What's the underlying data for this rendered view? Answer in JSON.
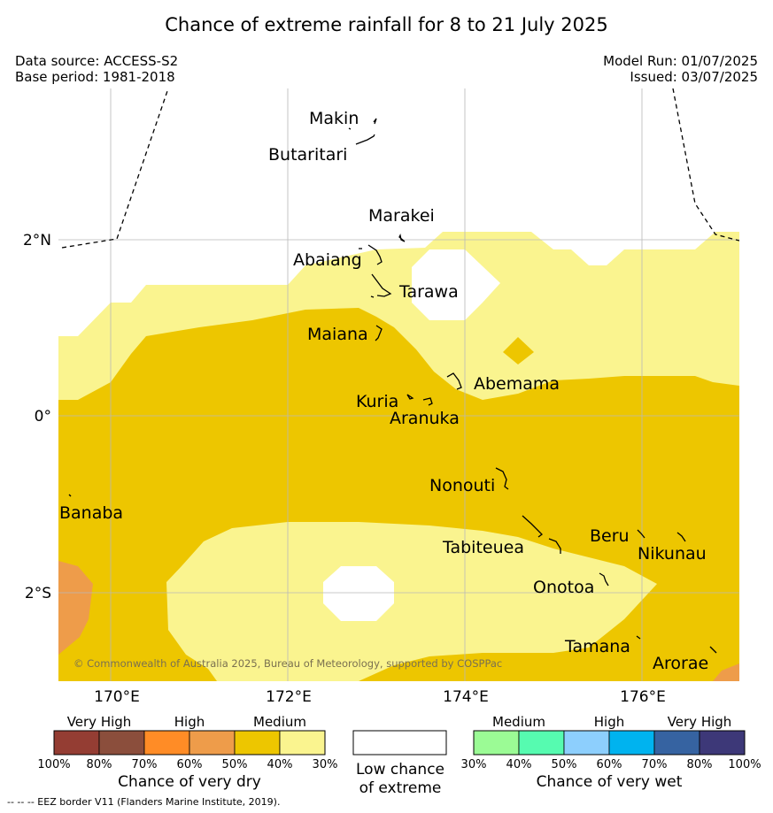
{
  "title": "Chance of extreme rainfall for 8 to 21 July 2025",
  "data_source": "Data source: ACCESS-S2",
  "base_period": "Base period: 1981-2018",
  "model_run": "Model Run: 01/07/2025",
  "issued": "Issued: 03/07/2025",
  "copyright": "© Commonwealth of Australia 2025, Bureau of Meteorology, supported by COSPPac",
  "lon_ticks": [
    "170°E",
    "172°E",
    "174°E",
    "176°E"
  ],
  "lat_ticks": [
    "2°N",
    "0°",
    "2°S"
  ],
  "places": [
    "Makin",
    "Butaritari",
    "Marakei",
    "Abaiang",
    "Tarawa",
    "Maiana",
    "Abemama",
    "Kuria",
    "Aranuka",
    "Nonouti",
    "Banaba",
    "Tabiteuea",
    "Beru",
    "Nikunau",
    "Onotoa",
    "Tamana",
    "Arorae"
  ],
  "legend": {
    "dry": {
      "headers": [
        "Very High",
        "High",
        "Medium"
      ],
      "ticks": [
        "100%",
        "80%",
        "70%",
        "60%",
        "50%",
        "40%",
        "30%"
      ],
      "colors": [
        "#943d33",
        "#8b4e3c",
        "#ff8c26",
        "#ee9c4a",
        "#edc600",
        "#faf48f"
      ],
      "caption": "Chance of very dry"
    },
    "low": {
      "caption_line1": "Low chance",
      "caption_line2": "of extreme",
      "color": "#ffffff"
    },
    "wet": {
      "headers": [
        "Medium",
        "High",
        "Very High"
      ],
      "ticks": [
        "30%",
        "40%",
        "50%",
        "60%",
        "70%",
        "80%",
        "100%"
      ],
      "colors": [
        "#9bfb95",
        "#56fbb0",
        "#8dcffd",
        "#00b3ef",
        "#3663a1",
        "#3d3878"
      ],
      "caption": "Chance of very wet"
    }
  },
  "eez_note": "--  --  -- EEZ border V11 (Flanders Marine Institute, 2019)."
}
